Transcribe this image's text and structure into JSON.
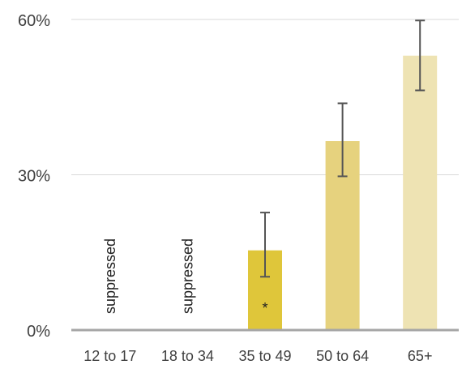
{
  "chart_data": {
    "type": "bar",
    "categories": [
      "12 to 17",
      "18 to 34",
      "35 to 49",
      "50 to 64",
      "65+"
    ],
    "values": [
      null,
      null,
      15.4,
      36.5,
      53.0
    ],
    "error_low": [
      null,
      null,
      10.3,
      29.7,
      46.3
    ],
    "error_high": [
      null,
      null,
      22.7,
      43.8,
      59.8
    ],
    "bar_colors": [
      "#e6cf52",
      "#e6cf52",
      "#dfc63a",
      "#e6d27e",
      "#eee3b3"
    ],
    "suppressed_label": "suppressed",
    "annotations": [
      null,
      null,
      "*",
      null,
      null
    ],
    "y_ticks": [
      {
        "value": 0,
        "label": "0%"
      },
      {
        "value": 30,
        "label": "30%"
      },
      {
        "value": 60,
        "label": "60%"
      }
    ],
    "ylim": [
      0,
      60
    ],
    "grid": true,
    "title": "",
    "xlabel": "",
    "ylabel": ""
  }
}
